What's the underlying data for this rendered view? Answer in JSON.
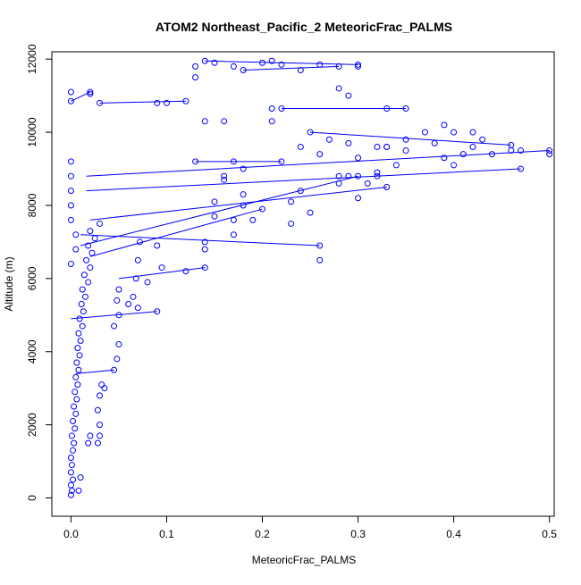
{
  "chart_data": {
    "type": "scatter",
    "title": "ATOM2 Northeast_Pacific_2 MeteoricFrac_PALMS",
    "xlabel": "MeteoricFrac_PALMS",
    "ylabel": "Altitude (m)",
    "xlim": [
      -0.02,
      0.505
    ],
    "ylim": [
      -500,
      12200
    ],
    "x_ticks": [
      0.0,
      0.1,
      0.2,
      0.3,
      0.4,
      0.5
    ],
    "x_tick_labels": [
      "0.0",
      "0.1",
      "0.2",
      "0.3",
      "0.4",
      "0.5"
    ],
    "y_ticks": [
      0,
      2000,
      4000,
      6000,
      8000,
      10000,
      12000
    ],
    "y_tick_labels": [
      "0",
      "2000",
      "4000",
      "6000",
      "8000",
      "10000",
      "12000"
    ],
    "grid": false,
    "legend": "none",
    "marker": "open-circle",
    "series": [
      {
        "color": "#0000ff",
        "points": [
          [
            0.0,
            80
          ],
          [
            0.001,
            200
          ],
          [
            0.0,
            350
          ],
          [
            0.002,
            500
          ],
          [
            0.0,
            700
          ],
          [
            0.001,
            900
          ],
          [
            0.0,
            1100
          ],
          [
            0.002,
            1300
          ],
          [
            0.003,
            1500
          ],
          [
            0.001,
            1700
          ],
          [
            0.004,
            1900
          ],
          [
            0.002,
            2100
          ],
          [
            0.005,
            2300
          ],
          [
            0.003,
            2500
          ],
          [
            0.006,
            2700
          ],
          [
            0.004,
            2900
          ],
          [
            0.007,
            3100
          ],
          [
            0.005,
            3300
          ],
          [
            0.008,
            3500
          ],
          [
            0.006,
            3700
          ],
          [
            0.009,
            3900
          ],
          [
            0.007,
            4100
          ],
          [
            0.01,
            4300
          ],
          [
            0.008,
            4500
          ],
          [
            0.012,
            4700
          ],
          [
            0.009,
            4900
          ],
          [
            0.013,
            5100
          ],
          [
            0.011,
            5300
          ],
          [
            0.015,
            5500
          ],
          [
            0.012,
            5700
          ],
          [
            0.018,
            5900
          ],
          [
            0.014,
            6100
          ],
          [
            0.02,
            6300
          ],
          [
            0.016,
            6500
          ],
          [
            0.022,
            6700
          ],
          [
            0.018,
            6900
          ],
          [
            0.025,
            7100
          ],
          [
            0.02,
            7300
          ],
          [
            0.03,
            7500
          ],
          [
            0.008,
            200
          ],
          [
            0.01,
            560
          ],
          [
            0.018,
            1500
          ],
          [
            0.02,
            1700
          ],
          [
            0.028,
            1500
          ],
          [
            0.03,
            1700
          ],
          [
            0.03,
            2000
          ],
          [
            0.028,
            2400
          ],
          [
            0.03,
            2800
          ],
          [
            0.032,
            3100
          ],
          [
            0.035,
            3000
          ],
          [
            0.045,
            3500
          ],
          [
            0.048,
            3800
          ],
          [
            0.05,
            4200
          ],
          [
            0.045,
            4700
          ],
          [
            0.05,
            5000
          ],
          [
            0.048,
            5400
          ],
          [
            0.05,
            5700
          ],
          [
            0.06,
            5300
          ],
          [
            0.065,
            5500
          ],
          [
            0.07,
            5200
          ],
          [
            0.068,
            6000
          ],
          [
            0.07,
            6500
          ],
          [
            0.072,
            7000
          ],
          [
            0.08,
            5900
          ],
          [
            0.09,
            5100
          ],
          [
            0.095,
            6300
          ],
          [
            0.09,
            6900
          ],
          [
            0.12,
            6200
          ],
          [
            0.14,
            6300
          ],
          [
            0.14,
            6800
          ],
          [
            0.14,
            7000
          ],
          [
            0.15,
            8100
          ],
          [
            0.15,
            7700
          ],
          [
            0.16,
            8700
          ],
          [
            0.17,
            7200
          ],
          [
            0.17,
            7600
          ],
          [
            0.18,
            8000
          ],
          [
            0.18,
            8300
          ],
          [
            0.19,
            7600
          ],
          [
            0.2,
            7900
          ],
          [
            0.23,
            8100
          ],
          [
            0.23,
            7500
          ],
          [
            0.24,
            8400
          ],
          [
            0.25,
            7800
          ],
          [
            0.26,
            6900
          ],
          [
            0.26,
            6500
          ],
          [
            0.28,
            8600
          ],
          [
            0.3,
            8200
          ],
          [
            0.31,
            8600
          ],
          [
            0.32,
            8900
          ],
          [
            0.33,
            8500
          ],
          [
            0.34,
            9100
          ],
          [
            0.35,
            9500
          ],
          [
            0.38,
            9700
          ],
          [
            0.39,
            10200
          ],
          [
            0.39,
            9300
          ],
          [
            0.4,
            9100
          ],
          [
            0.41,
            9400
          ],
          [
            0.42,
            9600
          ],
          [
            0.43,
            9800
          ],
          [
            0.44,
            9400
          ],
          [
            0.46,
            9500
          ],
          [
            0.47,
            9500
          ],
          [
            0.47,
            9000
          ],
          [
            0.5,
            9500
          ],
          [
            0.5,
            9400
          ],
          [
            0.0,
            10850
          ],
          [
            0.0,
            11100
          ],
          [
            0.02,
            11100
          ],
          [
            0.02,
            11050
          ],
          [
            0.03,
            10800
          ],
          [
            0.09,
            10800
          ],
          [
            0.1,
            10800
          ],
          [
            0.12,
            10850
          ],
          [
            0.13,
            11500
          ],
          [
            0.13,
            11800
          ],
          [
            0.14,
            11950
          ],
          [
            0.15,
            11900
          ],
          [
            0.17,
            11800
          ],
          [
            0.18,
            11700
          ],
          [
            0.2,
            11900
          ],
          [
            0.21,
            11950
          ],
          [
            0.22,
            11850
          ],
          [
            0.24,
            11700
          ],
          [
            0.26,
            11850
          ],
          [
            0.28,
            11800
          ],
          [
            0.28,
            11200
          ],
          [
            0.29,
            11000
          ],
          [
            0.3,
            11850
          ],
          [
            0.3,
            11800
          ],
          [
            0.33,
            10650
          ],
          [
            0.35,
            10650
          ],
          [
            0.33,
            9600
          ],
          [
            0.35,
            9800
          ],
          [
            0.37,
            10000
          ],
          [
            0.4,
            10000
          ],
          [
            0.42,
            10000
          ],
          [
            0.46,
            9650
          ],
          [
            0.14,
            10300
          ],
          [
            0.16,
            10300
          ],
          [
            0.21,
            10300
          ],
          [
            0.21,
            10650
          ],
          [
            0.22,
            10650
          ],
          [
            0.25,
            10000
          ],
          [
            0.27,
            9800
          ],
          [
            0.29,
            9700
          ],
          [
            0.3,
            9300
          ],
          [
            0.32,
            9600
          ],
          [
            0.33,
            9600
          ],
          [
            0.13,
            9200
          ],
          [
            0.17,
            9200
          ],
          [
            0.22,
            9200
          ],
          [
            0.24,
            9600
          ],
          [
            0.26,
            9400
          ],
          [
            0.28,
            8800
          ],
          [
            0.29,
            8800
          ],
          [
            0.3,
            8800
          ],
          [
            0.32,
            8800
          ],
          [
            0.16,
            8800
          ],
          [
            0.18,
            9000
          ],
          [
            0.0,
            9200
          ],
          [
            0.0,
            8800
          ],
          [
            0.0,
            8400
          ],
          [
            0.0,
            8000
          ],
          [
            0.0,
            7600
          ],
          [
            0.005,
            7200
          ],
          [
            0.005,
            6800
          ],
          [
            0.0,
            6400
          ]
        ],
        "lines": [
          [
            [
              0.0,
              10850
            ],
            [
              0.02,
              11100
            ]
          ],
          [
            [
              0.03,
              10800
            ],
            [
              0.12,
              10850
            ]
          ],
          [
            [
              0.14,
              11950
            ],
            [
              0.3,
              11850
            ]
          ],
          [
            [
              0.18,
              11700
            ],
            [
              0.28,
              11800
            ]
          ],
          [
            [
              0.22,
              10650
            ],
            [
              0.35,
              10650
            ]
          ],
          [
            [
              0.25,
              10000
            ],
            [
              0.46,
              9650
            ]
          ],
          [
            [
              0.13,
              9200
            ],
            [
              0.22,
              9200
            ]
          ],
          [
            [
              0.016,
              8800
            ],
            [
              0.5,
              9500
            ]
          ],
          [
            [
              0.016,
              8400
            ],
            [
              0.47,
              9000
            ]
          ],
          [
            [
              0.02,
              7600
            ],
            [
              0.33,
              8500
            ]
          ],
          [
            [
              0.01,
              7200
            ],
            [
              0.26,
              6900
            ]
          ],
          [
            [
              0.01,
              6900
            ],
            [
              0.3,
              8800
            ]
          ],
          [
            [
              0.02,
              6600
            ],
            [
              0.2,
              7900
            ]
          ],
          [
            [
              0.05,
              6000
            ],
            [
              0.14,
              6300
            ]
          ],
          [
            [
              0.0,
              4900
            ],
            [
              0.09,
              5100
            ]
          ],
          [
            [
              0.005,
              3400
            ],
            [
              0.045,
              3500
            ]
          ]
        ]
      }
    ]
  }
}
